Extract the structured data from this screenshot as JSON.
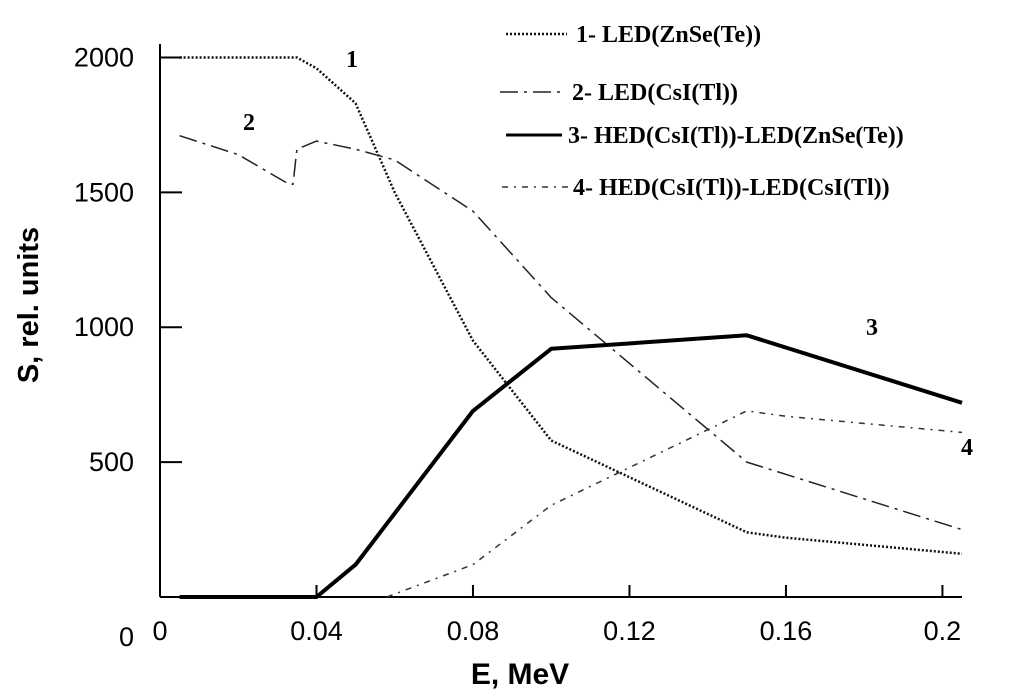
{
  "chart_data": {
    "type": "line",
    "xlabel": "E, MeV",
    "ylabel": "S, rel. units",
    "xlim": [
      0,
      0.205
    ],
    "ylim": [
      0,
      2050
    ],
    "x_ticks": [
      "0",
      "0.04",
      "0.08",
      "0.12",
      "0.16",
      "0.2"
    ],
    "y_ticks": [
      "0",
      "500",
      "1000",
      "1500",
      "2000"
    ],
    "grid": false,
    "legend_position": "top-right",
    "series": [
      {
        "name": "1- LED(ZnSe(Te))",
        "label": "1",
        "x": [
          0.005,
          0.035,
          0.04,
          0.05,
          0.06,
          0.08,
          0.1,
          0.15,
          0.16,
          0.205
        ],
        "y": [
          2000,
          2000,
          1960,
          1830,
          1500,
          950,
          580,
          240,
          220,
          160
        ]
      },
      {
        "name": "2- LED(CsI(Tl))",
        "label": "2",
        "x": [
          0.005,
          0.02,
          0.033,
          0.034,
          0.035,
          0.04,
          0.05,
          0.06,
          0.08,
          0.1,
          0.15,
          0.205
        ],
        "y": [
          1710,
          1640,
          1530,
          1530,
          1660,
          1690,
          1660,
          1620,
          1430,
          1110,
          500,
          250
        ]
      },
      {
        "name": "3- HED(CsI(Tl))-LED(ZnSe(Te))",
        "label": "3",
        "x": [
          0.005,
          0.04,
          0.05,
          0.08,
          0.1,
          0.15,
          0.205
        ],
        "y": [
          0,
          0,
          120,
          690,
          920,
          970,
          720
        ]
      },
      {
        "name": "4- HED(CsI(Tl))-LED(CsI(Tl))",
        "label": "4",
        "x": [
          0.058,
          0.08,
          0.1,
          0.15,
          0.16,
          0.205
        ],
        "y": [
          0,
          120,
          340,
          690,
          670,
          610
        ]
      }
    ]
  }
}
